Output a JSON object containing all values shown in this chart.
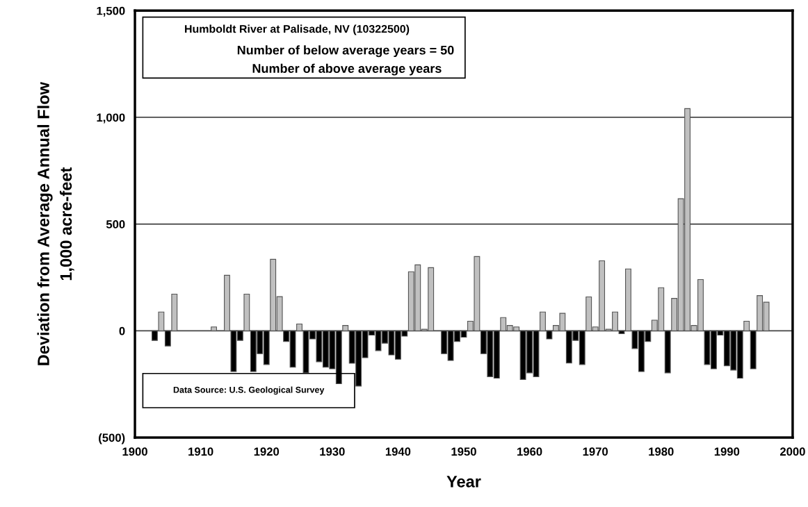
{
  "chart_data": {
    "type": "bar",
    "xlabel": "Year",
    "ylabel": "Deviation from Average Annual Flow\n1,000 acre-feet",
    "annotations": [
      "Humboldt River at Palisade, NV (10322500)",
      "Number of below average years = 50",
      "Number of above average years",
      "Data Source: U.S. Geological Survey"
    ],
    "x": [
      1903,
      1904,
      1905,
      1906,
      1907,
      1908,
      1909,
      1910,
      1911,
      1912,
      1913,
      1914,
      1915,
      1916,
      1917,
      1918,
      1919,
      1920,
      1921,
      1922,
      1923,
      1924,
      1925,
      1926,
      1927,
      1928,
      1929,
      1930,
      1931,
      1932,
      1933,
      1934,
      1935,
      1936,
      1937,
      1938,
      1939,
      1940,
      1941,
      1942,
      1943,
      1944,
      1945,
      1946,
      1947,
      1948,
      1949,
      1950,
      1951,
      1952,
      1953,
      1954,
      1955,
      1956,
      1957,
      1958,
      1959,
      1960,
      1961,
      1962,
      1963,
      1964,
      1965,
      1966,
      1967,
      1968,
      1969,
      1970,
      1971,
      1972,
      1973,
      1974,
      1975,
      1976,
      1977,
      1978,
      1979,
      1980,
      1981,
      1982,
      1983,
      1984,
      1985,
      1986,
      1987,
      1988,
      1989,
      1990,
      1991,
      1992,
      1993,
      1994,
      1995,
      1996
    ],
    "values": [
      -45,
      88,
      -71,
      172,
      null,
      null,
      null,
      null,
      null,
      18,
      null,
      260,
      -191,
      -45,
      172,
      -191,
      -107,
      -158,
      335,
      160,
      -50,
      -170,
      32,
      -197,
      -38,
      -145,
      -170,
      -178,
      -248,
      25,
      -152,
      -259,
      -126,
      -20,
      -93,
      -58,
      -113,
      -133,
      -25,
      277,
      309,
      7,
      296,
      null,
      -107,
      -139,
      -50,
      -30,
      45,
      348,
      -107,
      -215,
      -222,
      62,
      25,
      18,
      -228,
      -197,
      -215,
      88,
      -38,
      25,
      82,
      -151,
      -45,
      -158,
      159,
      18,
      328,
      7,
      88,
      -13,
      290,
      -83,
      -191,
      -50,
      50,
      202,
      -197,
      152,
      619,
      1041,
      25,
      240,
      -158,
      -178,
      -20,
      -164,
      -184,
      -222,
      45,
      -178,
      165,
      134
    ],
    "colors": [
      "#000000",
      "#c0c0c0",
      "#000000",
      "#c0c0c0",
      "#c0c0c0",
      "#c0c0c0",
      "#c0c0c0",
      "#c0c0c0",
      "#c0c0c0",
      "#c0c0c0",
      "#c0c0c0",
      "#c0c0c0",
      "#000000",
      "#000000",
      "#c0c0c0",
      "#000000",
      "#000000",
      "#000000",
      "#c0c0c0",
      "#c0c0c0",
      "#000000",
      "#000000",
      "#c0c0c0",
      "#000000",
      "#000000",
      "#000000",
      "#000000",
      "#000000",
      "#000000",
      "#c0c0c0",
      "#000000",
      "#000000",
      "#000000",
      "#000000",
      "#000000",
      "#000000",
      "#000000",
      "#000000",
      "#000000",
      "#c0c0c0",
      "#c0c0c0",
      "#c0c0c0",
      "#c0c0c0",
      "#c0c0c0",
      "#000000",
      "#000000",
      "#000000",
      "#000000",
      "#c0c0c0",
      "#c0c0c0",
      "#000000",
      "#000000",
      "#000000",
      "#c0c0c0",
      "#c0c0c0",
      "#c0c0c0",
      "#000000",
      "#000000",
      "#000000",
      "#c0c0c0",
      "#000000",
      "#c0c0c0",
      "#c0c0c0",
      "#000000",
      "#000000",
      "#000000",
      "#c0c0c0",
      "#c0c0c0",
      "#c0c0c0",
      "#c0c0c0",
      "#c0c0c0",
      "#000000",
      "#c0c0c0",
      "#000000",
      "#000000",
      "#000000",
      "#c0c0c0",
      "#c0c0c0",
      "#000000",
      "#c0c0c0",
      "#c0c0c0",
      "#c0c0c0",
      "#c0c0c0",
      "#c0c0c0",
      "#000000",
      "#000000",
      "#000000",
      "#000000",
      "#000000",
      "#000000",
      "#c0c0c0",
      "#000000",
      "#c0c0c0",
      "#c0c0c0"
    ],
    "xlim": [
      1900,
      2000
    ],
    "xticks": [
      1900,
      1910,
      1920,
      1930,
      1940,
      1950,
      1960,
      1970,
      1980,
      1990,
      2000
    ],
    "ylim": [
      -500,
      1500
    ],
    "yticks": [
      {
        "value": -500,
        "label": "(500)"
      },
      0,
      500,
      {
        "value": 1000,
        "label": "1,000"
      },
      {
        "value": 1500,
        "label": "1,500"
      }
    ],
    "grid": "y"
  }
}
